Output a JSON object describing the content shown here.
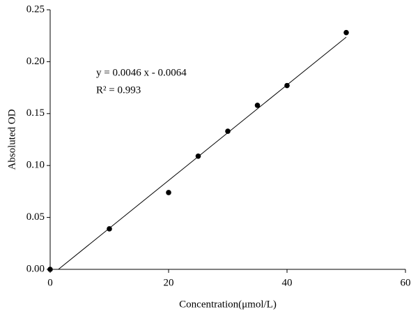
{
  "chart_data": {
    "type": "scatter",
    "x_label": "Concentration(μmol/L)",
    "y_label": "Absoluted OD",
    "annotations": [
      "y = 0.0046 x - 0.0064",
      "R² =  0.993"
    ],
    "x": [
      0,
      10,
      20,
      25,
      30,
      35,
      40,
      50
    ],
    "values": [
      0.0,
      0.039,
      0.074,
      0.109,
      0.133,
      0.158,
      0.177,
      0.228
    ],
    "color": "#000000",
    "fit": {
      "slope": 0.0046,
      "intercept": -0.0064
    },
    "xlim": [
      0,
      60
    ],
    "xticks": [
      0,
      20,
      40,
      60
    ],
    "ylim": [
      0,
      0.25
    ],
    "yticks": [
      {
        "value": 0,
        "label": "0.00"
      },
      0.05,
      {
        "value": 0.1,
        "label": "0.10"
      },
      0.15,
      {
        "value": 0.2,
        "label": "0.20"
      },
      0.25
    ]
  }
}
